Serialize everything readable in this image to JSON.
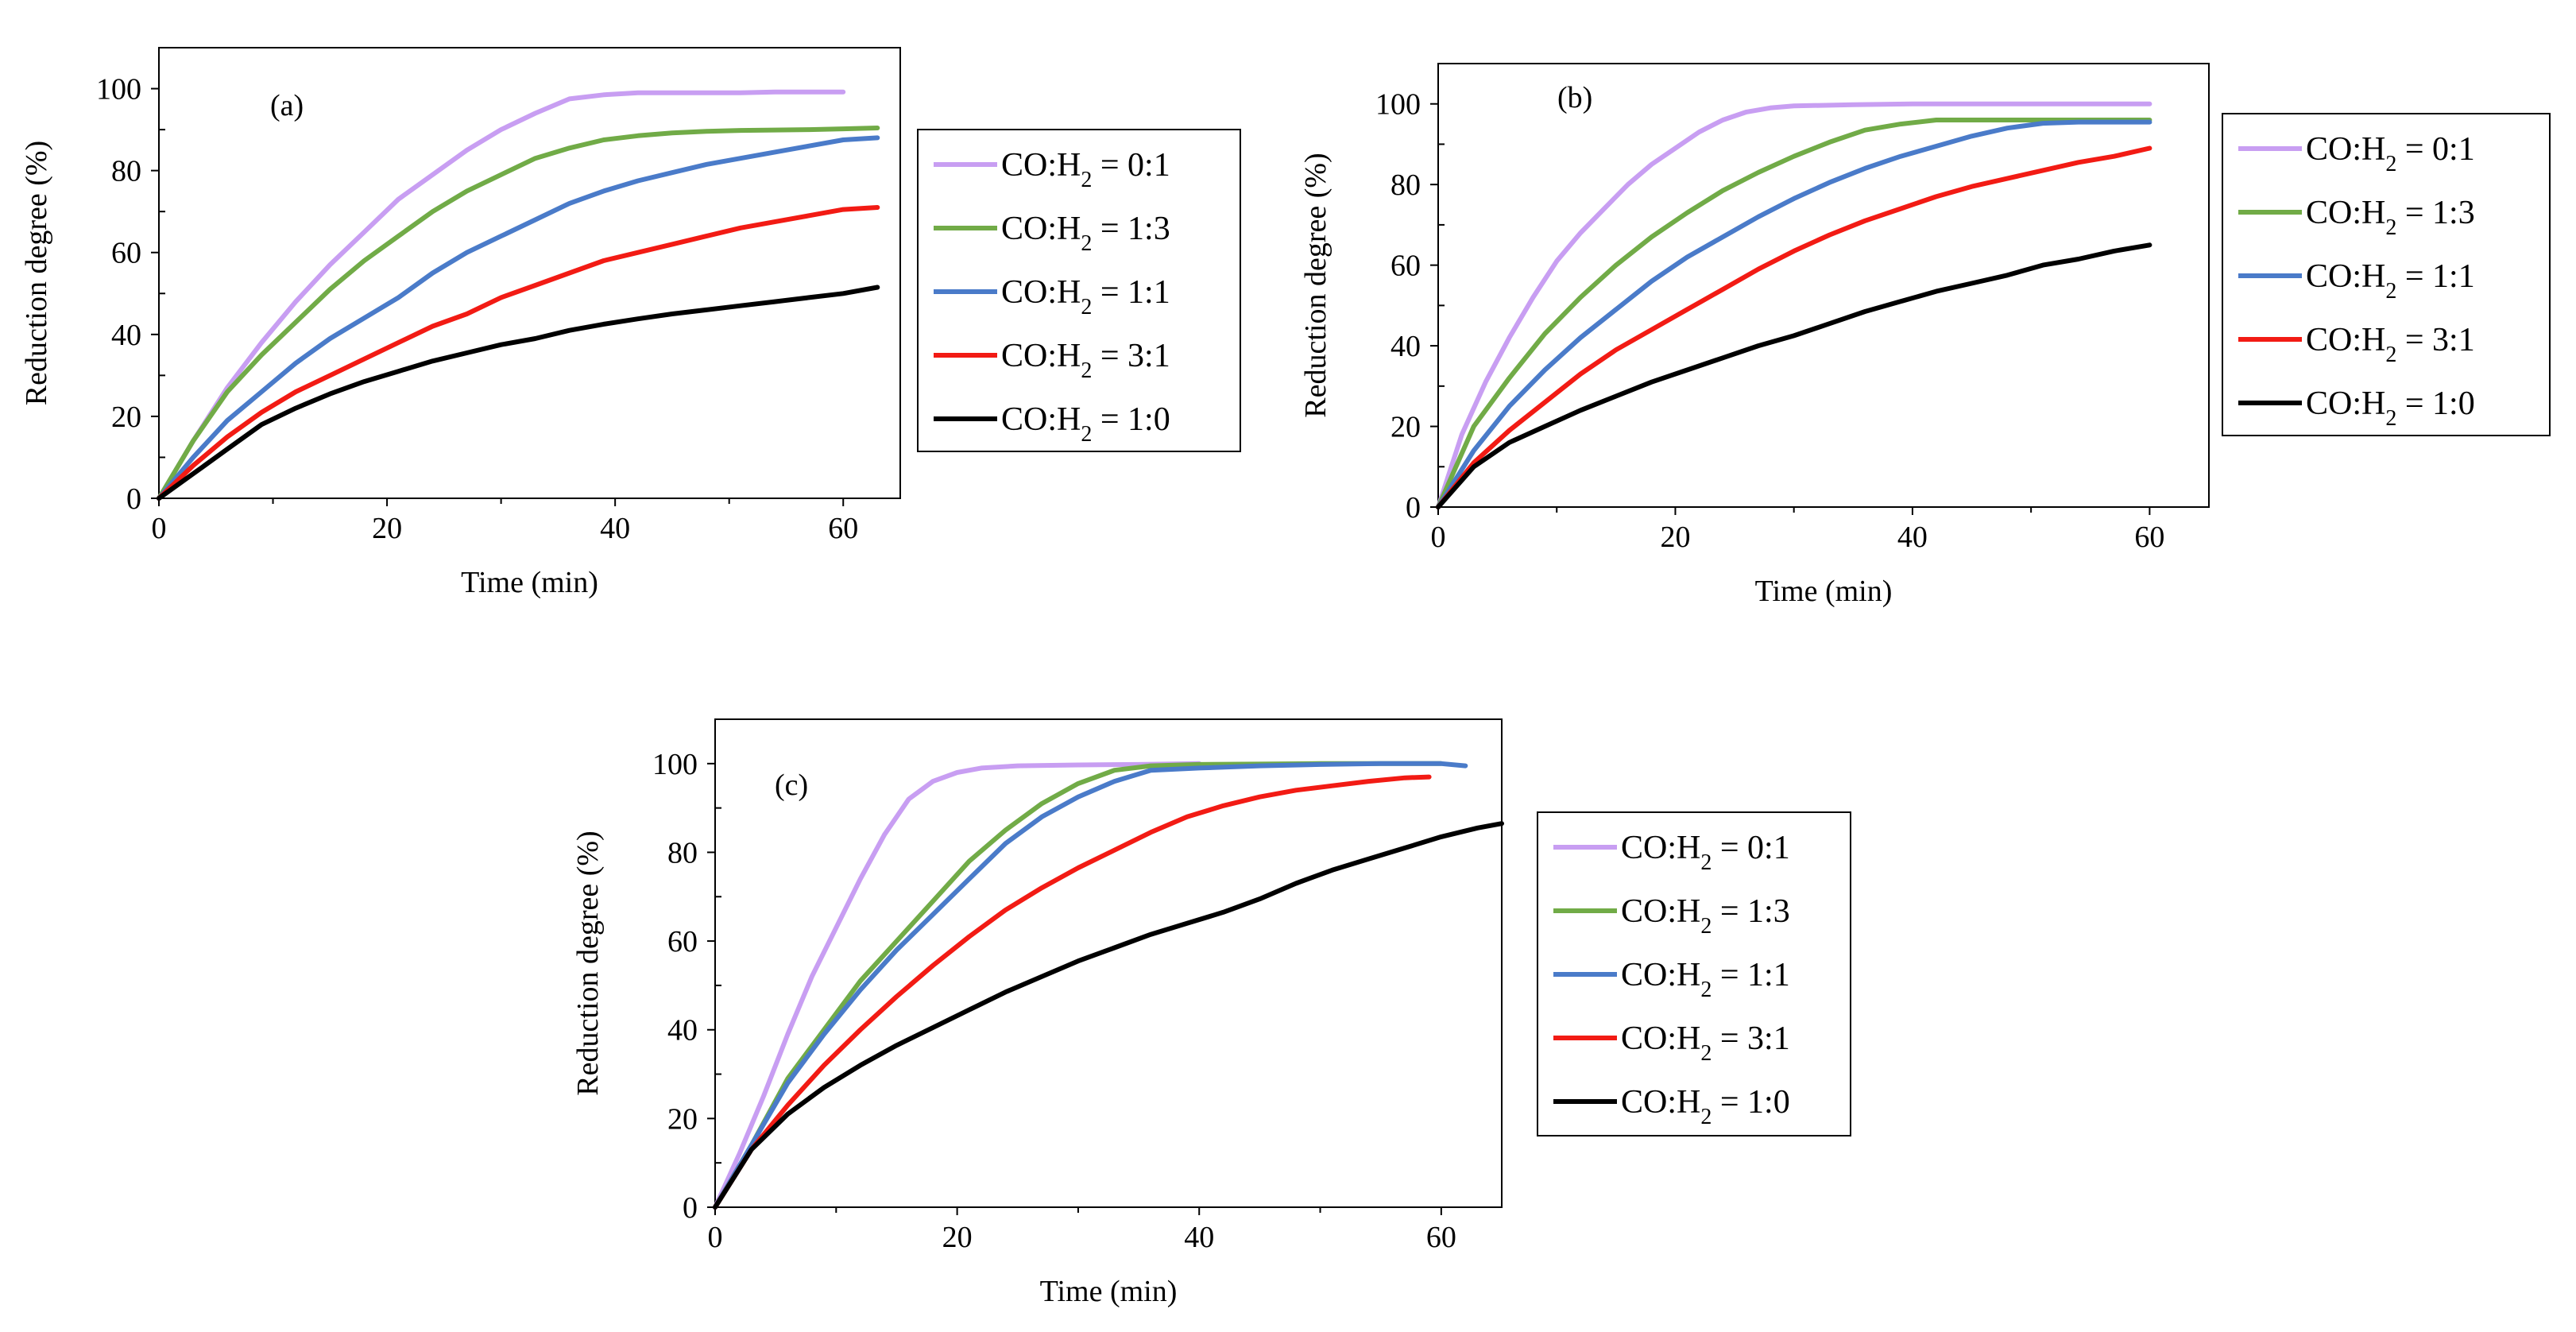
{
  "colors": {
    "pink": "#c89ef2",
    "green": "#71ab47",
    "blue": "#4a7bc9",
    "red": "#f21b14",
    "black": "#000000"
  },
  "chart_data": [
    {
      "type": "line",
      "panel": "(a)",
      "title": "",
      "xlabel": "Time (min)",
      "ylabel": "Reduction degree (%)",
      "xlim": [
        0,
        65
      ],
      "ylim": [
        0,
        110
      ],
      "xticks": [
        "0",
        "20",
        "40",
        "60"
      ],
      "yticks": [
        "0",
        "20",
        "40",
        "60",
        "80",
        "100"
      ],
      "grid": false,
      "legend_position": "right",
      "series": [
        {
          "name": "CO:H",
          "sub": "2",
          "ratio": " = 0:1",
          "color": "#c89ef2",
          "x": [
            0,
            3,
            6,
            9,
            12,
            15,
            18,
            21,
            24,
            27,
            30,
            33,
            36,
            39,
            42,
            45,
            48,
            51,
            54,
            57,
            60
          ],
          "y": [
            0,
            14,
            27,
            38,
            48,
            57,
            65,
            73,
            79,
            85,
            90,
            94,
            97.5,
            98.5,
            99,
            99,
            99,
            99,
            99.2,
            99.2,
            99.2
          ]
        },
        {
          "name": "CO:H",
          "sub": "2",
          "ratio": " = 1:3",
          "color": "#71ab47",
          "x": [
            0,
            3,
            6,
            9,
            12,
            15,
            18,
            21,
            24,
            27,
            30,
            33,
            36,
            39,
            42,
            45,
            48,
            51,
            54,
            57,
            60,
            63
          ],
          "y": [
            0,
            14,
            26,
            35,
            43,
            51,
            58,
            64,
            70,
            75,
            79,
            83,
            85.5,
            87.5,
            88.5,
            89.2,
            89.6,
            89.8,
            89.9,
            90,
            90.2,
            90.4
          ]
        },
        {
          "name": "CO:H",
          "sub": "2",
          "ratio": " = 1:1",
          "color": "#4a7bc9",
          "x": [
            0,
            3,
            6,
            9,
            12,
            15,
            18,
            21,
            24,
            27,
            30,
            33,
            36,
            39,
            42,
            45,
            48,
            51,
            54,
            57,
            60,
            63
          ],
          "y": [
            0,
            10,
            19,
            26,
            33,
            39,
            44,
            49,
            55,
            60,
            64,
            68,
            72,
            75,
            77.5,
            79.5,
            81.5,
            83,
            84.5,
            86,
            87.5,
            88
          ]
        },
        {
          "name": "CO:H",
          "sub": "2",
          "ratio": " = 3:1",
          "color": "#f21b14",
          "x": [
            0,
            3,
            6,
            9,
            12,
            15,
            18,
            21,
            24,
            27,
            30,
            33,
            36,
            39,
            42,
            45,
            48,
            51,
            54,
            57,
            60,
            63
          ],
          "y": [
            0,
            8,
            15,
            21,
            26,
            30,
            34,
            38,
            42,
            45,
            49,
            52,
            55,
            58,
            60,
            62,
            64,
            66,
            67.5,
            69,
            70.5,
            71
          ]
        },
        {
          "name": "CO:H",
          "sub": "2",
          "ratio": " = 1:0",
          "color": "#000000",
          "x": [
            0,
            3,
            6,
            9,
            12,
            15,
            18,
            21,
            24,
            27,
            30,
            33,
            36,
            39,
            42,
            45,
            48,
            51,
            54,
            57,
            60,
            63
          ],
          "y": [
            0,
            6,
            12,
            18,
            22,
            25.5,
            28.5,
            31,
            33.5,
            35.5,
            37.5,
            39,
            41,
            42.5,
            43.8,
            45,
            46,
            47,
            48,
            49,
            50,
            51.5
          ]
        }
      ]
    },
    {
      "type": "line",
      "panel": "(b)",
      "title": "",
      "xlabel": "Time (min)",
      "ylabel": "Reduction degree (%)",
      "xlim": [
        0,
        65
      ],
      "ylim": [
        0,
        110
      ],
      "xticks": [
        "0",
        "20",
        "40",
        "60"
      ],
      "yticks": [
        "0",
        "20",
        "40",
        "60",
        "80",
        "100"
      ],
      "grid": false,
      "legend_position": "right",
      "series": [
        {
          "name": "CO:H",
          "sub": "2",
          "ratio": " = 0:1",
          "color": "#c89ef2",
          "x": [
            0,
            2,
            4,
            6,
            8,
            10,
            12,
            14,
            16,
            18,
            20,
            22,
            24,
            26,
            28,
            30,
            35,
            40,
            45,
            50,
            55,
            60
          ],
          "y": [
            0,
            18,
            31,
            42,
            52,
            61,
            68,
            74,
            80,
            85,
            89,
            93,
            96,
            98,
            99,
            99.5,
            99.8,
            100,
            100,
            100,
            100,
            100
          ]
        },
        {
          "name": "CO:H",
          "sub": "2",
          "ratio": " = 1:3",
          "color": "#71ab47",
          "x": [
            0,
            3,
            6,
            9,
            12,
            15,
            18,
            21,
            24,
            27,
            30,
            33,
            36,
            39,
            42,
            45,
            48,
            51,
            54,
            57,
            60
          ],
          "y": [
            0,
            20,
            32,
            43,
            52,
            60,
            67,
            73,
            78.5,
            83,
            87,
            90.5,
            93.5,
            95,
            96,
            96,
            96,
            96,
            96,
            96,
            96
          ]
        },
        {
          "name": "CO:H",
          "sub": "2",
          "ratio": " = 1:1",
          "color": "#4a7bc9",
          "x": [
            0,
            3,
            6,
            9,
            12,
            15,
            18,
            21,
            24,
            27,
            30,
            33,
            36,
            39,
            42,
            45,
            48,
            51,
            54,
            57,
            60
          ],
          "y": [
            0,
            14,
            25,
            34,
            42,
            49,
            56,
            62,
            67,
            72,
            76.5,
            80.5,
            84,
            87,
            89.5,
            92,
            94,
            95.2,
            95.5,
            95.5,
            95.5
          ]
        },
        {
          "name": "CO:H",
          "sub": "2",
          "ratio": " = 3:1",
          "color": "#f21b14",
          "x": [
            0,
            3,
            6,
            9,
            12,
            15,
            18,
            21,
            24,
            27,
            30,
            33,
            36,
            39,
            42,
            45,
            48,
            51,
            54,
            57,
            60
          ],
          "y": [
            0,
            11,
            19,
            26,
            33,
            39,
            44,
            49,
            54,
            59,
            63.5,
            67.5,
            71,
            74,
            77,
            79.5,
            81.5,
            83.5,
            85.5,
            87,
            89
          ]
        },
        {
          "name": "CO:H",
          "sub": "2",
          "ratio": " = 1:0",
          "color": "#000000",
          "x": [
            0,
            3,
            6,
            9,
            12,
            15,
            18,
            21,
            24,
            27,
            30,
            33,
            36,
            39,
            42,
            45,
            48,
            51,
            54,
            57,
            60
          ],
          "y": [
            0,
            10,
            16,
            20,
            24,
            27.5,
            31,
            34,
            37,
            40,
            42.5,
            45.5,
            48.5,
            51,
            53.5,
            55.5,
            57.5,
            60,
            61.5,
            63.5,
            65
          ]
        }
      ]
    },
    {
      "type": "line",
      "panel": "(c)",
      "title": "",
      "xlabel": "Time (min)",
      "ylabel": "Reduction degree (%)",
      "xlim": [
        0,
        65
      ],
      "ylim": [
        0,
        110
      ],
      "xticks": [
        "0",
        "20",
        "40",
        "60"
      ],
      "yticks": [
        "0",
        "20",
        "40",
        "60",
        "80",
        "100"
      ],
      "grid": false,
      "legend_position": "right",
      "series": [
        {
          "name": "CO:H",
          "sub": "2",
          "ratio": " = 0:1",
          "color": "#c89ef2",
          "x": [
            0,
            2,
            4,
            6,
            8,
            10,
            12,
            14,
            16,
            18,
            20,
            22,
            25,
            30,
            35,
            40
          ],
          "y": [
            0,
            12,
            25,
            39,
            52,
            63,
            74,
            84,
            92,
            96,
            98,
            99,
            99.5,
            99.7,
            99.8,
            100
          ]
        },
        {
          "name": "CO:H",
          "sub": "2",
          "ratio": " = 1:3",
          "color": "#71ab47",
          "x": [
            0,
            3,
            6,
            9,
            12,
            15,
            18,
            21,
            24,
            27,
            30,
            33,
            36,
            40,
            45,
            50,
            55,
            60
          ],
          "y": [
            0,
            14,
            29,
            40,
            51,
            60,
            69,
            78,
            85,
            91,
            95.5,
            98.5,
            99.5,
            99.8,
            99.9,
            100,
            100,
            100
          ]
        },
        {
          "name": "CO:H",
          "sub": "2",
          "ratio": " = 1:1",
          "color": "#4a7bc9",
          "x": [
            0,
            3,
            6,
            9,
            12,
            15,
            18,
            21,
            24,
            27,
            30,
            33,
            36,
            40,
            45,
            50,
            55,
            60,
            62
          ],
          "y": [
            0,
            14,
            28,
            39,
            49,
            58,
            66,
            74,
            82,
            88,
            92.5,
            96,
            98.5,
            99,
            99.5,
            99.8,
            100,
            100,
            99.5
          ]
        },
        {
          "name": "CO:H",
          "sub": "2",
          "ratio": " = 3:1",
          "color": "#f21b14",
          "x": [
            0,
            3,
            6,
            9,
            12,
            15,
            18,
            21,
            24,
            27,
            30,
            33,
            36,
            39,
            42,
            45,
            48,
            51,
            54,
            57,
            59
          ],
          "y": [
            0,
            13,
            23,
            32,
            40,
            47.5,
            54.5,
            61,
            67,
            72,
            76.5,
            80.5,
            84.5,
            88,
            90.5,
            92.5,
            94,
            95,
            96,
            96.8,
            97
          ]
        },
        {
          "name": "CO:H",
          "sub": "2",
          "ratio": " = 1:0",
          "color": "#000000",
          "x": [
            0,
            3,
            6,
            9,
            12,
            15,
            18,
            21,
            24,
            27,
            30,
            33,
            36,
            39,
            42,
            45,
            48,
            51,
            54,
            57,
            60,
            63,
            65
          ],
          "y": [
            0,
            13,
            21,
            27,
            32,
            36.5,
            40.5,
            44.5,
            48.5,
            52,
            55.5,
            58.5,
            61.5,
            64,
            66.5,
            69.5,
            73,
            76,
            78.5,
            81,
            83.5,
            85.5,
            86.5
          ]
        }
      ]
    }
  ]
}
